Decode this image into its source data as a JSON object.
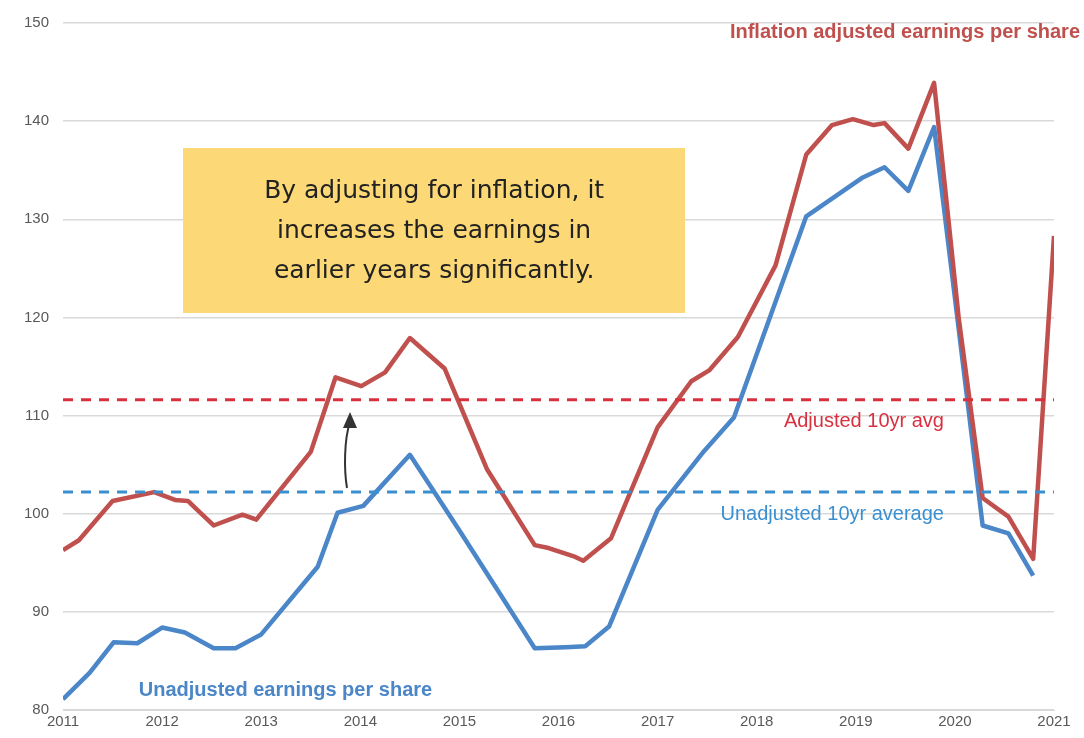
{
  "chart_data": {
    "type": "line",
    "xlim": [
      2011,
      2021
    ],
    "xticks": [
      2011,
      2012,
      2013,
      2014,
      2015,
      2016,
      2017,
      2018,
      2019,
      2020,
      2021
    ],
    "ylim": [
      80,
      150
    ],
    "yticks": [
      80,
      90,
      100,
      110,
      120,
      130,
      140,
      150
    ],
    "grid": "y",
    "legend": false,
    "marker": "none",
    "line_style": "solid",
    "series": [
      {
        "name": "Inflation adjusted earnings per share",
        "color": "#c0504d",
        "x": [
          2011.0,
          2011.16,
          2011.5,
          2011.92,
          2012.13,
          2012.26,
          2012.52,
          2012.81,
          2012.95,
          2013.5,
          2013.75,
          2014.01,
          2014.25,
          2014.5,
          2014.85,
          2015.28,
          2015.76,
          2015.9,
          2016.17,
          2016.25,
          2016.53,
          2017.0,
          2017.34,
          2017.52,
          2017.81,
          2018.19,
          2018.5,
          2018.76,
          2018.97,
          2019.18,
          2019.29,
          2019.53,
          2019.79,
          2020.04,
          2020.28,
          2020.54,
          2020.79,
          2021.0
        ],
        "values": [
          96.3,
          97.3,
          101.3,
          102.2,
          101.4,
          101.3,
          98.8,
          99.9,
          99.4,
          106.3,
          113.9,
          113.0,
          114.4,
          117.9,
          114.8,
          104.5,
          96.8,
          96.5,
          95.6,
          95.2,
          97.5,
          108.8,
          113.5,
          114.6,
          118.0,
          125.3,
          136.6,
          139.6,
          140.2,
          139.6,
          139.8,
          137.2,
          143.9,
          119.8,
          101.6,
          99.7,
          95.4,
          128.3
        ]
      },
      {
        "name": "Unadjusted earnings per share",
        "color": "#4a86c8",
        "x": [
          2011.0,
          2011.27,
          2011.51,
          2011.75,
          2012.0,
          2012.23,
          2012.52,
          2012.74,
          2013.0,
          2013.57,
          2013.77,
          2014.03,
          2014.5,
          2015.0,
          2015.76,
          2016.07,
          2016.27,
          2016.51,
          2017.0,
          2017.47,
          2017.77,
          2018.5,
          2019.06,
          2019.29,
          2019.53,
          2019.79,
          2020.28,
          2020.54,
          2020.79
        ],
        "values": [
          81.1,
          83.8,
          86.9,
          86.8,
          88.4,
          87.9,
          86.3,
          86.3,
          87.7,
          94.6,
          100.1,
          100.8,
          106.0,
          98.3,
          86.3,
          86.4,
          86.5,
          88.5,
          100.4,
          106.4,
          109.8,
          130.3,
          134.2,
          135.3,
          132.9,
          139.4,
          98.8,
          98.0,
          93.7
        ]
      }
    ],
    "ref_lines": [
      {
        "axis": "y",
        "value": 111.6,
        "label": "Adjusted 10yr avg",
        "color": "#d9303f",
        "line_style": "dashed"
      },
      {
        "axis": "y",
        "value": 102.2,
        "label": "Unadjusted 10yr average",
        "color": "#3a8fd0",
        "line_style": "dashed"
      }
    ],
    "annotations": [
      "By adjusting for inflation, it increases the earnings in earlier years significantly."
    ]
  }
}
